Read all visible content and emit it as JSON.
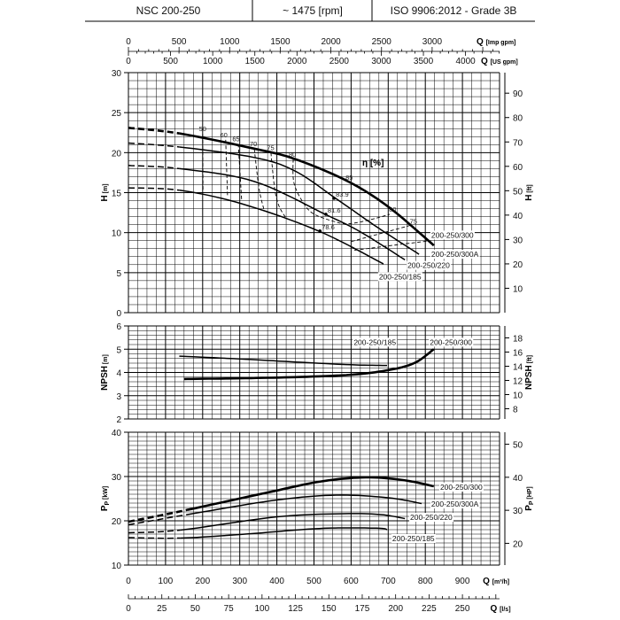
{
  "header": {
    "model": "NSC 200-250",
    "speed": "~ 1475 [rpm]",
    "standard": "ISO 9906:2012 - Grade 3B"
  },
  "axes": {
    "q_main": {
      "label": "Q",
      "unit": "[m³/h]",
      "ticks": [
        0,
        100,
        200,
        300,
        400,
        500,
        600,
        700,
        800,
        900
      ],
      "range": [
        0,
        1000
      ]
    },
    "q_ls": {
      "label": "Q",
      "unit": "[l/s]",
      "ticks": [
        0,
        25,
        50,
        75,
        100,
        125,
        150,
        175,
        200,
        225,
        250
      ],
      "factor_m3h": 3.6
    },
    "q_imp": {
      "label": "Q",
      "unit": "[Imp gpm]",
      "ticks": [
        0,
        500,
        1000,
        1500,
        2000,
        2500,
        3000
      ],
      "factor_m3h": 0.2728
    },
    "q_us": {
      "label": "Q",
      "unit": "[US gpm]",
      "ticks": [
        0,
        500,
        1000,
        1500,
        2000,
        2500,
        3000,
        3500,
        4000
      ],
      "factor_m3h": 0.2271
    }
  },
  "chart_data": [
    {
      "id": "head",
      "type": "line",
      "ylabel": "H",
      "yunit": "[m]",
      "y2label": "H",
      "y2unit": "[ft]",
      "xlim": [
        0,
        1000
      ],
      "ylim": [
        0,
        30
      ],
      "yticks": [
        0,
        5,
        10,
        15,
        20,
        25,
        30
      ],
      "y2ticks": [
        10,
        20,
        30,
        40,
        50,
        60,
        70,
        80,
        90
      ],
      "y2_factor_m": 0.3048,
      "grid": true,
      "dash_until_q": 130,
      "series": [
        {
          "name": "200-250/300",
          "thick": true,
          "points": [
            [
              0,
              23.1
            ],
            [
              138,
              22.4
            ],
            [
              339,
              20.5
            ],
            [
              449,
              19.2
            ],
            [
              592,
              16.4
            ],
            [
              704,
              13.1
            ],
            [
              823,
              8.4
            ]
          ],
          "label_at": [
            816,
            9.7
          ]
        },
        {
          "name": "200-250/300A",
          "points": [
            [
              0,
              21.2
            ],
            [
              138,
              20.7
            ],
            [
              339,
              19.4
            ],
            [
              449,
              17.7
            ],
            [
              561,
              14.2
            ],
            [
              673,
              10.6
            ],
            [
              783,
              7.3
            ]
          ],
          "label_at": [
            816,
            7.3
          ]
        },
        {
          "name": "200-250/220",
          "points": [
            [
              0,
              18.4
            ],
            [
              138,
              18.0
            ],
            [
              339,
              16.4
            ],
            [
              530,
              12.3
            ],
            [
              625,
              10.1
            ],
            [
              745,
              6.6
            ]
          ],
          "label_at": [
            752,
            5.9
          ]
        },
        {
          "name": "200-250/185",
          "points": [
            [
              0,
              15.6
            ],
            [
              138,
              15.3
            ],
            [
              306,
              13.6
            ],
            [
              513,
              10.2
            ],
            [
              687,
              6.1
            ]
          ],
          "label_at": [
            675,
            4.5
          ]
        }
      ],
      "efficiency": {
        "label": "η [%]",
        "label_at": [
          630,
          18.4
        ],
        "iso_lines": [
          {
            "value": "50",
            "points": [
              [
                200,
                22.3
              ],
              [
                201,
                15.1
              ]
            ],
            "label_at": [
              200,
              22.7
            ]
          },
          {
            "value": "60",
            "points": [
              [
                262,
                21.6
              ],
              [
                267,
                14.6
              ]
            ],
            "label_at": [
              257,
              21.9
            ]
          },
          {
            "value": "65",
            "points": [
              [
                296,
                21.1
              ],
              [
                305,
                14.1
              ]
            ],
            "label_at": [
              290,
              21.4
            ]
          },
          {
            "value": "70",
            "points": [
              [
                339,
                20.5
              ],
              [
                352,
                15.5
              ],
              [
                365,
                12.9
              ]
            ],
            "label_at": [
              337,
              20.8
            ]
          },
          {
            "value": "75",
            "points": [
              [
                384,
                20.0
              ],
              [
                394,
                15.5
              ],
              [
                406,
                13.3
              ],
              [
                425,
                11.8
              ]
            ],
            "label_at": [
              383,
              20.3
            ]
          },
          {
            "value": "80",
            "points": [
              [
                444,
                19.2
              ],
              [
                446,
                16.2
              ],
              [
                473,
                13.6
              ],
              [
                501,
                12.3
              ],
              [
                554,
                11.4
              ],
              [
                592,
                11.1
              ],
              [
                650,
                11.6
              ],
              [
                704,
                12.3
              ]
            ],
            "label_at": [
              442,
              19.5
            ]
          },
          {
            "value": "85",
            "points": [],
            "label_at": [
              595,
              16.6
            ]
          },
          {
            "value": "80",
            "points": [],
            "label_at": [
              712,
              12.6
            ]
          },
          {
            "value": "75",
            "points": [
              [
                601,
                8.9
              ],
              [
                680,
                9.9
              ],
              [
                759,
                10.9
              ]
            ],
            "label_at": [
              768,
              11.1
            ]
          },
          {
            "value": "",
            "points": [
              [
                609,
                7.8
              ],
              [
                710,
                8.4
              ],
              [
                816,
                9.0
              ]
            ]
          }
        ],
        "bep": [
          {
            "value": "83.9",
            "q": 554,
            "h": 14.3
          },
          {
            "value": "81.6",
            "q": 532,
            "h": 12.3
          },
          {
            "value": "78.6",
            "q": 516,
            "h": 10.2
          }
        ]
      }
    },
    {
      "id": "npsh",
      "type": "line",
      "ylabel": "NPSH",
      "yunit": "[m]",
      "y2label": "NPSH",
      "y2unit": "[ft]",
      "xlim": [
        0,
        1000
      ],
      "ylim": [
        2,
        6
      ],
      "yticks": [
        2,
        3,
        4,
        5,
        6
      ],
      "y2ticks": [
        8,
        10,
        12,
        14,
        16,
        18
      ],
      "y2_factor_m": 0.3048,
      "grid": true,
      "series": [
        {
          "name": "200-250/185",
          "points": [
            [
              137,
              4.7
            ],
            [
              300,
              4.58
            ],
            [
              450,
              4.45
            ],
            [
              600,
              4.33
            ],
            [
              697,
              4.3
            ]
          ],
          "label_at": [
            607,
            5.3
          ]
        },
        {
          "name": "200-250/300",
          "thick": true,
          "points": [
            [
              150,
              3.72
            ],
            [
              300,
              3.75
            ],
            [
              450,
              3.8
            ],
            [
              600,
              3.9
            ],
            [
              700,
              4.1
            ],
            [
              770,
              4.4
            ],
            [
              823,
              5.0
            ]
          ],
          "label_at": [
            812,
            5.3
          ]
        }
      ]
    },
    {
      "id": "power",
      "type": "line",
      "ylabel": "P",
      "ysub": "P",
      "yunit": "[kW]",
      "y2label": "P",
      "y2sub": "P",
      "y2unit": "[HP]",
      "xlim": [
        0,
        1000
      ],
      "ylim": [
        10,
        40
      ],
      "yticks": [
        10,
        20,
        30,
        40
      ],
      "y2ticks": [
        20,
        30,
        40,
        50
      ],
      "y2_factor_m": 0.7457,
      "grid": true,
      "dash_until_q": 140,
      "series": [
        {
          "name": "200-250/300",
          "thick": true,
          "points": [
            [
              0,
              19.8
            ],
            [
              138,
              22.1
            ],
            [
              370,
              26.3
            ],
            [
              520,
              28.9
            ],
            [
              640,
              29.8
            ],
            [
              740,
              29.2
            ],
            [
              823,
              27.8
            ]
          ],
          "label_at": [
            840,
            27.6
          ]
        },
        {
          "name": "200-250/300A",
          "points": [
            [
              0,
              19.1
            ],
            [
              200,
              22.0
            ],
            [
              400,
              24.7
            ],
            [
              560,
              25.8
            ],
            [
              700,
              25.2
            ],
            [
              790,
              23.9
            ]
          ],
          "label_at": [
            816,
            23.8
          ]
        },
        {
          "name": "200-250/220",
          "points": [
            [
              0,
              17.3
            ],
            [
              140,
              17.9
            ],
            [
              400,
              20.9
            ],
            [
              580,
              21.6
            ],
            [
              680,
              21.4
            ],
            [
              745,
              20.5
            ]
          ],
          "label_at": [
            759,
            20.8
          ]
        },
        {
          "name": "200-250/185",
          "points": [
            [
              0,
              16.2
            ],
            [
              140,
              16.1
            ],
            [
              300,
              16.9
            ],
            [
              500,
              18.2
            ],
            [
              600,
              18.4
            ],
            [
              680,
              18.3
            ],
            [
              697,
              18.0
            ]
          ],
          "label_at": [
            711,
            16.0
          ]
        }
      ]
    }
  ]
}
